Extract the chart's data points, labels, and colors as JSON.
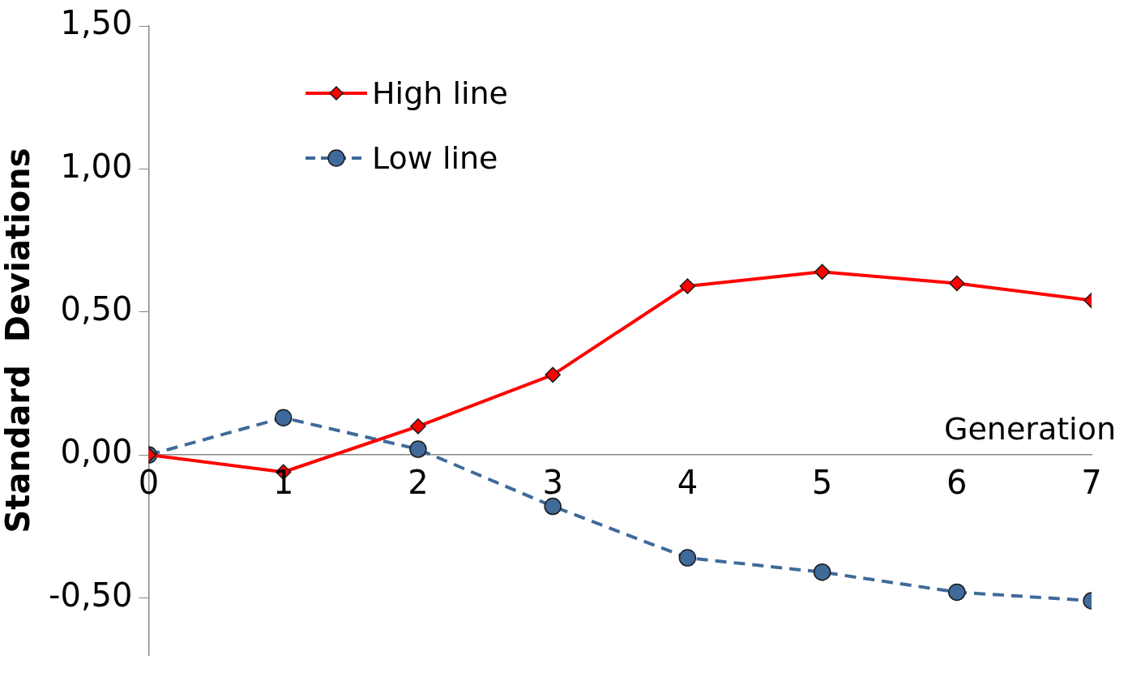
{
  "chart_data": {
    "type": "line",
    "x": [
      0,
      1,
      2,
      3,
      4,
      5,
      6,
      7
    ],
    "xlabel": "Generation",
    "ylabel": "Standard  Deviations",
    "xlim": [
      0,
      7
    ],
    "xticks": [
      0,
      1,
      2,
      3,
      4,
      5,
      6,
      7
    ],
    "ylim": [
      -0.7,
      1.5
    ],
    "yticks": [
      {
        "value": -0.5,
        "label": "-0,50"
      },
      {
        "value": 0,
        "label": "0,00"
      },
      {
        "value": 0.5,
        "label": "0,50"
      },
      {
        "value": 1,
        "label": "1,00"
      },
      {
        "value": 1.5,
        "label": "1,50"
      }
    ],
    "grid": false,
    "legend": "top left",
    "series": [
      {
        "name": "High line",
        "color": "#ff0000",
        "marker": "diamond",
        "line_style": "solid",
        "values": [
          0,
          -0.06,
          0.1,
          0.28,
          0.59,
          0.64,
          0.6,
          0.54
        ]
      },
      {
        "name": "Low line",
        "color": "#3f6a9a",
        "marker": "circle",
        "line_style": "dashed",
        "values": [
          0,
          0.13,
          0.02,
          -0.18,
          -0.36,
          -0.41,
          -0.48,
          -0.51
        ]
      }
    ]
  }
}
